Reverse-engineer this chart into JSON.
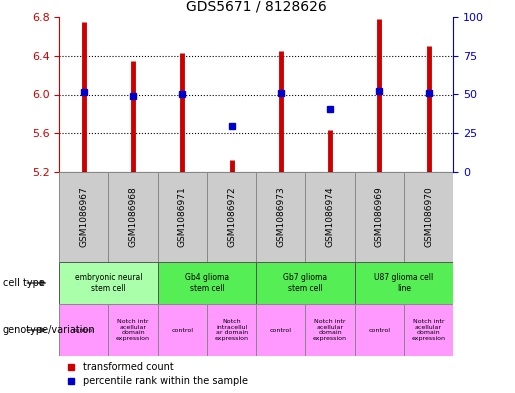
{
  "title": "GDS5671 / 8128626",
  "samples": [
    "GSM1086967",
    "GSM1086968",
    "GSM1086971",
    "GSM1086972",
    "GSM1086973",
    "GSM1086974",
    "GSM1086969",
    "GSM1086970"
  ],
  "red_values": [
    6.75,
    6.35,
    6.43,
    5.32,
    6.45,
    5.63,
    6.78,
    6.5
  ],
  "blue_values": [
    6.03,
    5.98,
    6.01,
    5.68,
    6.02,
    5.85,
    6.04,
    6.02
  ],
  "ymin": 5.2,
  "ymax": 6.8,
  "yticks_left": [
    5.2,
    5.6,
    6.0,
    6.4,
    6.8
  ],
  "yticks_right": [
    0,
    25,
    50,
    75,
    100
  ],
  "bar_color": "#cc0000",
  "dot_color": "#0000cc",
  "left_axis_color": "#cc0000",
  "right_axis_color": "#0000cc",
  "grid_color": "black",
  "sample_box_color": "#cccccc",
  "cell_groups": [
    {
      "label": "embryonic neural\nstem cell",
      "start": 0,
      "end": 2,
      "color": "#aaffaa"
    },
    {
      "label": "Gb4 glioma\nstem cell",
      "start": 2,
      "end": 4,
      "color": "#55ee55"
    },
    {
      "label": "Gb7 glioma\nstem cell",
      "start": 4,
      "end": 6,
      "color": "#55ee55"
    },
    {
      "label": "U87 glioma cell\nline",
      "start": 6,
      "end": 8,
      "color": "#55ee55"
    }
  ],
  "geno_groups": [
    {
      "label": "control",
      "start": 0,
      "end": 1,
      "color": "#ff99ff"
    },
    {
      "label": "Notch intr\nacellular\ndomain\nexpression",
      "start": 1,
      "end": 2,
      "color": "#ff99ff"
    },
    {
      "label": "control",
      "start": 2,
      "end": 3,
      "color": "#ff99ff"
    },
    {
      "label": "Notch\nintracellul\nar domain\nexpression",
      "start": 3,
      "end": 4,
      "color": "#ff99ff"
    },
    {
      "label": "control",
      "start": 4,
      "end": 5,
      "color": "#ff99ff"
    },
    {
      "label": "Notch intr\nacellular\ndomain\nexpression",
      "start": 5,
      "end": 6,
      "color": "#ff99ff"
    },
    {
      "label": "control",
      "start": 6,
      "end": 7,
      "color": "#ff99ff"
    },
    {
      "label": "Notch intr\nacellular\ndomain\nexpression",
      "start": 7,
      "end": 8,
      "color": "#ff99ff"
    }
  ]
}
